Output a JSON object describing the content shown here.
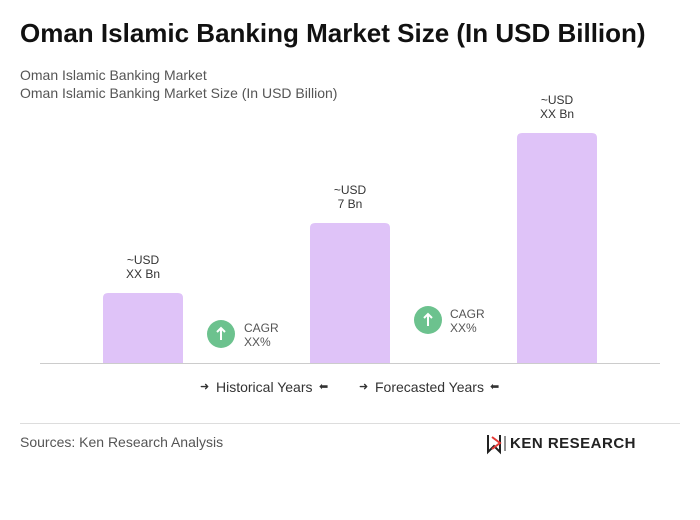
{
  "chart_data": {
    "type": "bar",
    "title": "Oman Islamic Banking Market Size (In USD Billion)",
    "subtitle": [
      "Oman Islamic Banking Market",
      "Oman Islamic Banking Market Size (In USD Billion)"
    ],
    "values": [
      3.5,
      7,
      11.5
    ],
    "value_labels": [
      "~USD\nXX Bn",
      "~USD\n7 Bn",
      "~USD\nXX Bn"
    ],
    "color": "#dfc3f8",
    "annotations": [
      "CAGR\nXX%",
      "CAGR\nXX%"
    ],
    "legend": [
      "Historical Years",
      "Forecasted Years"
    ],
    "source": "Sources: Ken Research Analysis",
    "logo": "KEN RESEARCH"
  }
}
